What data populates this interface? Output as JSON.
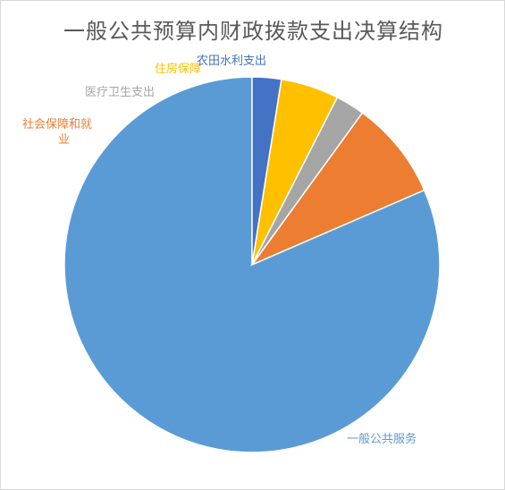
{
  "chart_data": {
    "type": "pie",
    "title": "一般公共预算内财政拨款支出决算结构",
    "categories": [
      "一般公共服务",
      "社会保障和就业",
      "医疗卫生支出",
      "住房保障",
      "农田水利支出"
    ],
    "values": [
      81.5,
      8.5,
      2.5,
      5.0,
      2.5
    ],
    "colors": [
      "#5b9bd5",
      "#ed7d31",
      "#a5a5a5",
      "#ffc000",
      "#4472c4"
    ],
    "legend": "none",
    "data_labels": "category-outside"
  }
}
